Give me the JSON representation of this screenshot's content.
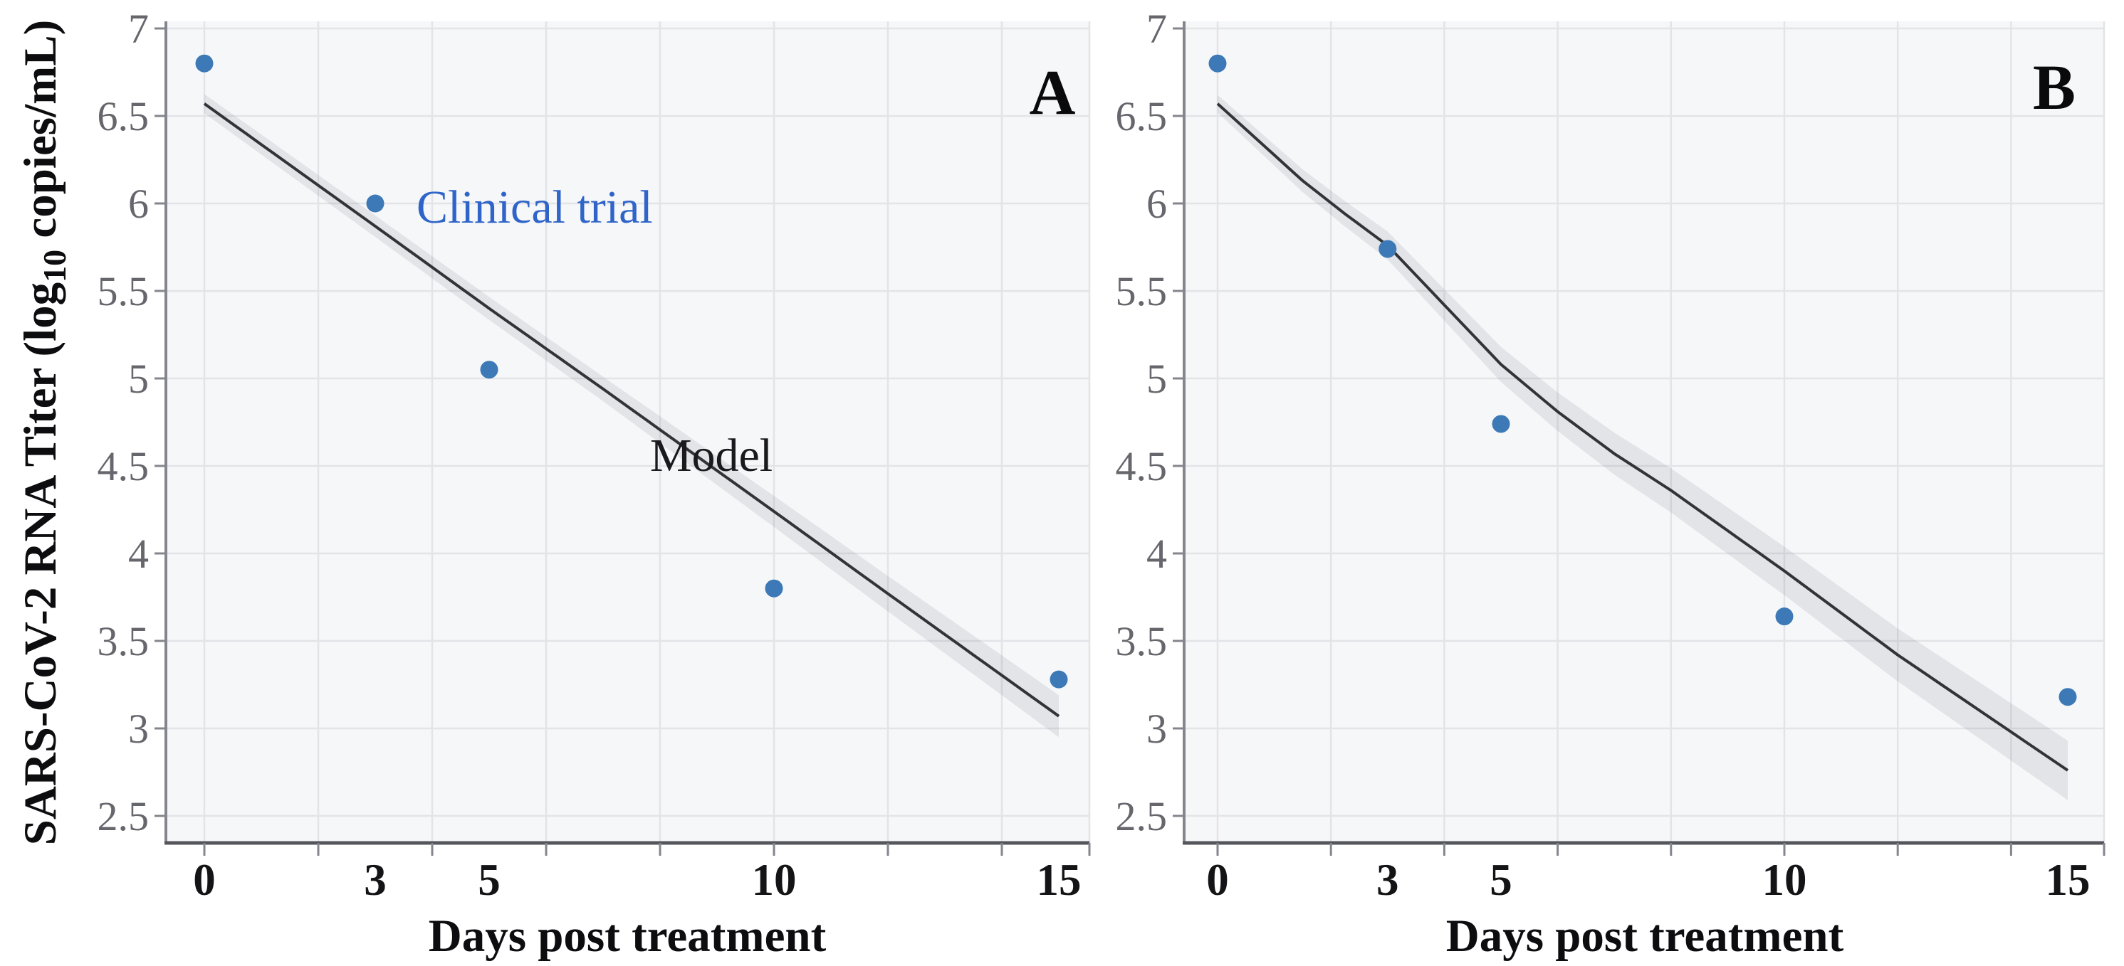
{
  "y_axis_title": {
    "pre": "SARS-CoV-2 RNA Titer (log",
    "sub": "10",
    "post": " copies/mL)"
  },
  "axes": {
    "y_ticks": [
      {
        "value": 7,
        "label": "7"
      },
      {
        "value": 6.5,
        "label": "6.5"
      },
      {
        "value": 6,
        "label": "6"
      },
      {
        "value": 5.5,
        "label": "5.5"
      },
      {
        "value": 5,
        "label": "5"
      },
      {
        "value": 4.5,
        "label": "4.5"
      },
      {
        "value": 4,
        "label": "4"
      },
      {
        "value": 3.5,
        "label": "3.5"
      },
      {
        "value": 3,
        "label": "3"
      },
      {
        "value": 2.5,
        "label": "2.5"
      }
    ],
    "x_tick_labels": [
      {
        "value": 0,
        "label": "0"
      },
      {
        "value": 3,
        "label": "3"
      },
      {
        "value": 5,
        "label": "5"
      },
      {
        "value": 10,
        "label": "10"
      },
      {
        "value": 15,
        "label": "15"
      }
    ],
    "x_grid_days": [
      0,
      2,
      4,
      6,
      8,
      10,
      12,
      14
    ],
    "x_range_days": [
      0,
      15
    ],
    "y_range": [
      2.5,
      7
    ],
    "grid": true,
    "legend_position": "none (labels annotated inside panel A)"
  },
  "style": {
    "plot_bg": "#f6f7f9",
    "grid_color": "#e3e4e8",
    "axis_color": "#85858d",
    "axis_bottom_color": "#55555c",
    "y_tick_label_color": "#66666d",
    "x_tick_label_color": "#141416",
    "point_color": "#3c79b6",
    "model_line_color": "#323237",
    "band_color": "rgba(90,90,105,0.12)",
    "clinical_label_color": "#2f64c9",
    "model_label_color": "#1a1a1e"
  },
  "chart_data": [
    {
      "panel_label": "A",
      "type": "scatter",
      "xlabel": "Days post treatment",
      "ylabel": "SARS-CoV-2 RNA Titer (log10 copies/mL)",
      "series": [
        {
          "name": "Clinical trial",
          "type": "scatter",
          "points": [
            [
              0,
              6.8
            ],
            [
              3,
              6.0
            ],
            [
              5,
              5.05
            ],
            [
              10,
              3.8
            ],
            [
              15,
              3.28
            ]
          ]
        },
        {
          "name": "Model",
          "type": "line_with_ci",
          "points": [
            [
              0,
              6.57
            ],
            [
              3,
              5.87
            ],
            [
              5,
              5.4
            ],
            [
              7,
              4.94
            ],
            [
              10,
              4.24
            ],
            [
              12,
              3.77
            ],
            [
              15,
              3.07
            ]
          ],
          "ci_halfwidth": [
            [
              0,
              0.055
            ],
            [
              7,
              0.07
            ],
            [
              15,
              0.12
            ]
          ]
        }
      ],
      "annotations": [
        {
          "text": "Clinical trial",
          "x": 3.7,
          "y": 5.98,
          "anchor": "start",
          "color": "#2f64c9"
        },
        {
          "text": "Model",
          "x": 8.9,
          "y": 4.56,
          "anchor": "middle",
          "color": "#1a1a1e"
        }
      ]
    },
    {
      "panel_label": "B",
      "type": "scatter",
      "xlabel": "Days post treatment",
      "ylabel": "SARS-CoV-2 RNA Titer (log10 copies/mL)",
      "series": [
        {
          "name": "Clinical trial",
          "type": "scatter",
          "points": [
            [
              0,
              6.8
            ],
            [
              3,
              5.74
            ],
            [
              5,
              4.74
            ],
            [
              10,
              3.64
            ],
            [
              15,
              3.18
            ]
          ]
        },
        {
          "name": "Model",
          "type": "line_with_ci",
          "points": [
            [
              0,
              6.57
            ],
            [
              0.75,
              6.35
            ],
            [
              1.5,
              6.13
            ],
            [
              2.25,
              5.94
            ],
            [
              3,
              5.76
            ],
            [
              4,
              5.42
            ],
            [
              5,
              5.08
            ],
            [
              6,
              4.81
            ],
            [
              7,
              4.57
            ],
            [
              8,
              4.36
            ],
            [
              9,
              4.13
            ],
            [
              10,
              3.9
            ],
            [
              11,
              3.66
            ],
            [
              12,
              3.42
            ],
            [
              13,
              3.2
            ],
            [
              14,
              2.98
            ],
            [
              15,
              2.76
            ]
          ],
          "ci_halfwidth": [
            [
              0,
              0.05
            ],
            [
              7,
              0.12
            ],
            [
              15,
              0.17
            ]
          ]
        }
      ],
      "annotations": []
    }
  ]
}
